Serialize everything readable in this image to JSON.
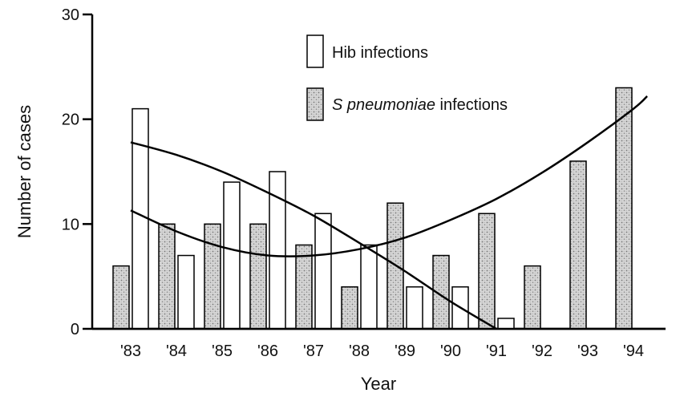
{
  "chart_data": {
    "type": "bar",
    "xlabel": "Year",
    "ylabel": "Number of cases",
    "categories": [
      "'83",
      "'84",
      "'85",
      "'86",
      "'87",
      "'88",
      "'89",
      "'90",
      "'91",
      "'92",
      "'93",
      "'94"
    ],
    "ylim": [
      0,
      30
    ],
    "yticks": [
      0,
      10,
      20,
      30
    ],
    "grid": false,
    "legend_position": "top-right",
    "series": [
      {
        "name": "S pneumoniae infections",
        "name_italic": "S pneumoniae",
        "name_rest": " infections",
        "fill": "stippled",
        "values": [
          6,
          10,
          10,
          10,
          8,
          4,
          12,
          7,
          11,
          6,
          16,
          23
        ]
      },
      {
        "name": "Hib infections",
        "fill": "open",
        "values": [
          21,
          7,
          14,
          15,
          11,
          8,
          4,
          4,
          1,
          0,
          0,
          0
        ]
      }
    ],
    "trend_lines": [
      {
        "series": "Hib infections",
        "points": [
          [
            0.5,
            17.8
          ],
          [
            1.5,
            16.6
          ],
          [
            2.5,
            15.0
          ],
          [
            3.5,
            13.0
          ],
          [
            4.5,
            10.8
          ],
          [
            5.5,
            8.2
          ],
          [
            6.5,
            5.5
          ],
          [
            7.5,
            2.6
          ],
          [
            8.5,
            0.0
          ]
        ]
      },
      {
        "series": "S pneumoniae infections",
        "points": [
          [
            0.5,
            11.3
          ],
          [
            1.5,
            9.3
          ],
          [
            2.5,
            7.8
          ],
          [
            3.5,
            7.0
          ],
          [
            4.5,
            7.0
          ],
          [
            5.5,
            7.6
          ],
          [
            6.5,
            8.7
          ],
          [
            7.5,
            10.4
          ],
          [
            8.5,
            12.4
          ],
          [
            9.5,
            14.9
          ],
          [
            10.5,
            17.8
          ],
          [
            11.5,
            21.0
          ],
          [
            11.8,
            22.2
          ]
        ]
      }
    ]
  }
}
